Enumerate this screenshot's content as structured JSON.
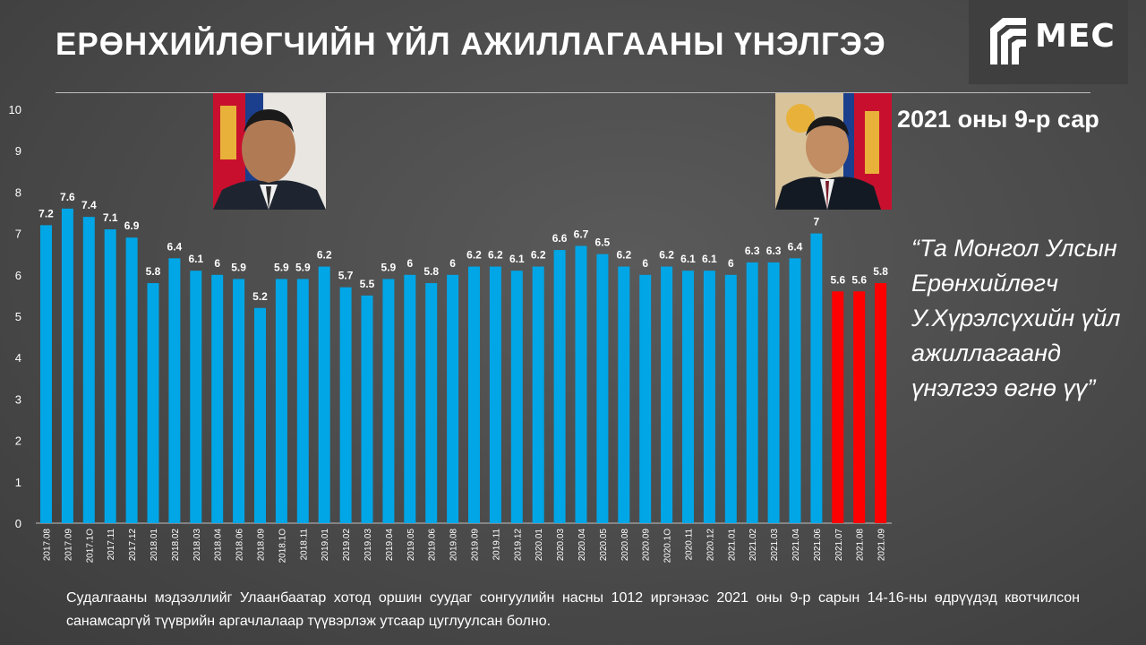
{
  "header": {
    "title": "ЕРӨНХИЙЛӨГЧИЙН ҮЙЛ АЖИЛЛАГААНЫ ҮНЭЛГЭЭ",
    "logo_text": "MEC"
  },
  "side": {
    "period": "2021 оны 9-р сар",
    "quote": "“Та Монгол Улсын Ерөнхийлөгч У.Хүрэлсүхийн үйл ажиллагаанд үнэлгээ өгнө үү”"
  },
  "footnote": "Судалгааны мэдээллийг Улаанбаатар хотод оршин суудаг сонгуулийн насны 1012 иргэнээс 2021 оны 9-р сарын 14-16-ны өдрүүдэд квотчилсон санамсаргүй түүврийн аргачлалаар түүвэрлэж утсаар цуглуулсан болно.",
  "colors": {
    "bar": "#00a6e6",
    "bar_highlight": "#ff0000",
    "background": "#4a4a4a"
  },
  "chart_data": {
    "type": "bar",
    "title": "",
    "xlabel": "",
    "ylabel": "",
    "ylim": [
      0,
      10
    ],
    "yticks": [
      0,
      1,
      2,
      3,
      4,
      5,
      6,
      7,
      8,
      9,
      10
    ],
    "grid": false,
    "categories": [
      "2017.08",
      "2017.09",
      "2017.1O",
      "2017.11",
      "2017.12",
      "2018.01",
      "2018.02",
      "2018.03",
      "2018.04",
      "2018.06",
      "2018.09",
      "2018.1O",
      "2018.11",
      "2019.01",
      "2019.02",
      "2019.03",
      "2019.04",
      "2019.05",
      "2019.06",
      "2019.08",
      "2019.09",
      "2019.11",
      "2019.12",
      "2020.01",
      "2020.03",
      "2020.04",
      "2020.05",
      "2020.08",
      "2020.09",
      "2020.1O",
      "2020.11",
      "2020.12",
      "2021.01",
      "2021.02",
      "2021.03",
      "2021.04",
      "2021.06",
      "2021.07",
      "2021.08",
      "2021.09"
    ],
    "values": [
      7.2,
      7.6,
      7.4,
      7.1,
      6.9,
      5.8,
      6.4,
      6.1,
      6,
      5.9,
      5.2,
      5.9,
      5.9,
      6.2,
      5.7,
      5.5,
      5.9,
      6,
      5.8,
      6,
      6.2,
      6.2,
      6.1,
      6.2,
      6.6,
      6.7,
      6.5,
      6.2,
      6,
      6.2,
      6.1,
      6.1,
      6,
      6.3,
      6.3,
      6.4,
      7,
      5.6,
      5.6,
      5.8
    ],
    "value_labels": [
      "7.2",
      "7.6",
      "7.4",
      "7.1",
      "6.9",
      "5.8",
      "6.4",
      "6.1",
      "6",
      "5.9",
      "5.2",
      "5.9",
      "5.9",
      "6.2",
      "5.7",
      "5.5",
      "5.9",
      "6",
      "5.8",
      "6",
      "6.2",
      "6.2",
      "6.1",
      "6.2",
      "6.6",
      "6.7",
      "6.5",
      "6.2",
      "6",
      "6.2",
      "6.1",
      "6.1",
      "6",
      "6.3",
      "6.3",
      "6.4",
      "7",
      "5.6",
      "5.6",
      "5.8"
    ],
    "highlight_from_index": 37
  }
}
